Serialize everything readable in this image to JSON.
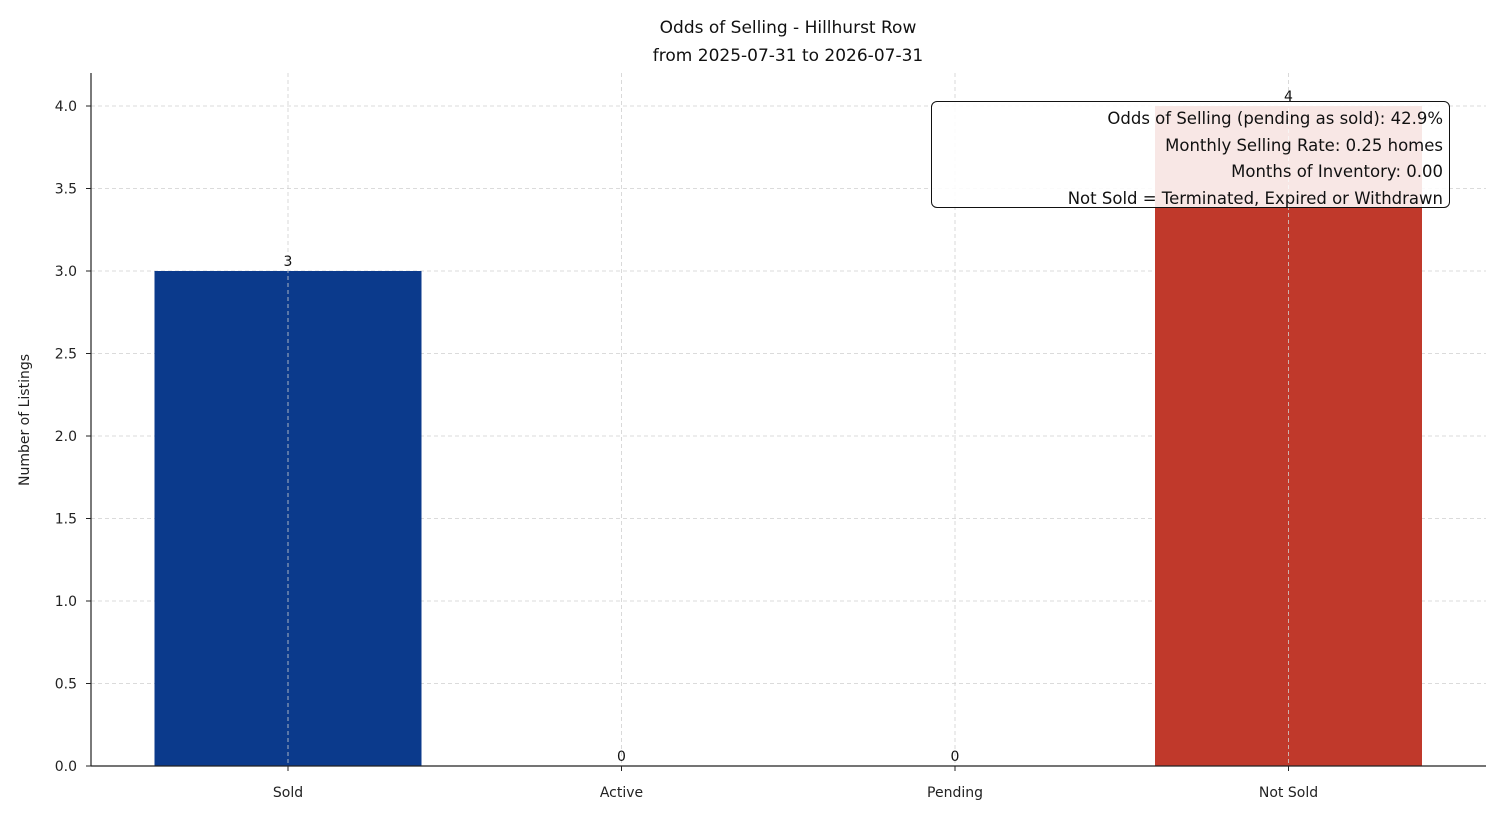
{
  "chart_data": {
    "type": "bar",
    "title": "Odds of Selling - Hillhurst Row",
    "subtitle": "from 2025-07-31 to 2026-07-31",
    "xlabel": "",
    "ylabel": "Number of Listings",
    "categories": [
      "Sold",
      "Active",
      "Pending",
      "Not Sold"
    ],
    "values": [
      3,
      0,
      0,
      4
    ],
    "data_labels": [
      "3",
      "0",
      "0",
      "4"
    ],
    "colors": [
      "#0b3a8c",
      "#0b3a8c",
      "#0b3a8c",
      "#c0392b"
    ],
    "ylim": [
      0,
      4.2
    ],
    "yticks": [
      0.0,
      0.5,
      1.0,
      1.5,
      2.0,
      2.5,
      3.0,
      3.5,
      4.0
    ],
    "ytick_labels": [
      "0.0",
      "0.5",
      "1.0",
      "1.5",
      "2.0",
      "2.5",
      "3.0",
      "3.5",
      "4.0"
    ],
    "grid": true,
    "annotation": {
      "placement": "top-right",
      "lines": [
        "Odds of Selling (pending as sold): 42.9%",
        "Monthly Selling Rate: 0.25 homes",
        "Months of Inventory: 0.00",
        "Not Sold = Terminated, Expired or Withdrawn"
      ]
    }
  }
}
